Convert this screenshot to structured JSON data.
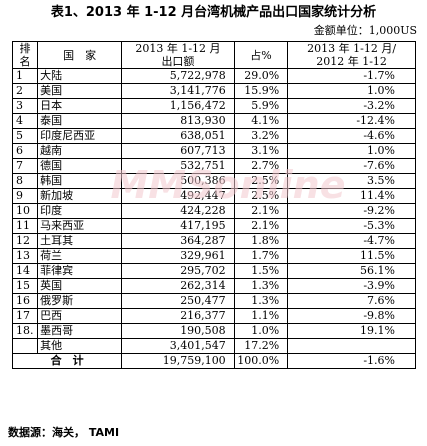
{
  "title": "表1、2013 年 1-12 月台湾机械产品出口国家统计分析",
  "unit": "金额单位：1,000US",
  "headers": {
    "rank_line1": "排",
    "rank_line2": "名",
    "country": "国　家",
    "amount_line1": "2013 年 1-12 月",
    "amount_line2": "出口额",
    "pct": "占%",
    "change_line1": "2013 年 1-12 月/",
    "change_line2": "2012 年 1-12"
  },
  "rows": [
    {
      "rank": "1",
      "country": "大陆",
      "amount": "5,722,978",
      "pct": "29.0%",
      "change": "-1.7%"
    },
    {
      "rank": "2",
      "country": "美国",
      "amount": "3,141,776",
      "pct": "15.9%",
      "change": "1.0%"
    },
    {
      "rank": "3",
      "country": "日本",
      "amount": "1,156,472",
      "pct": "5.9%",
      "change": "-3.2%"
    },
    {
      "rank": "4",
      "country": "泰国",
      "amount": "813,930",
      "pct": "4.1%",
      "change": "-12.4%"
    },
    {
      "rank": "5",
      "country": "印度尼西亚",
      "amount": "638,051",
      "pct": "3.2%",
      "change": "-4.6%"
    },
    {
      "rank": "6",
      "country": "越南",
      "amount": "607,713",
      "pct": "3.1%",
      "change": "1.0%"
    },
    {
      "rank": "7",
      "country": "德国",
      "amount": "532,751",
      "pct": "2.7%",
      "change": "-7.6%"
    },
    {
      "rank": "8",
      "country": "韩国",
      "amount": "500,386",
      "pct": "2.5%",
      "change": "3.5%"
    },
    {
      "rank": "9",
      "country": "新加坡",
      "amount": "492,447",
      "pct": "2.5%",
      "change": "11.4%"
    },
    {
      "rank": "10",
      "country": "印度",
      "amount": "424,228",
      "pct": "2.1%",
      "change": "-9.2%"
    },
    {
      "rank": "11",
      "country": "马来西亚",
      "amount": "417,195",
      "pct": "2.1%",
      "change": "-5.3%"
    },
    {
      "rank": "12",
      "country": "土耳其",
      "amount": "364,287",
      "pct": "1.8%",
      "change": "-4.7%"
    },
    {
      "rank": "13",
      "country": "荷兰",
      "amount": "329,961",
      "pct": "1.7%",
      "change": "11.5%"
    },
    {
      "rank": "14",
      "country": "菲律宾",
      "amount": "295,702",
      "pct": "1.5%",
      "change": "56.1%"
    },
    {
      "rank": "15",
      "country": "英国",
      "amount": "262,314",
      "pct": "1.3%",
      "change": "-3.9%"
    },
    {
      "rank": "16",
      "country": "俄罗斯",
      "amount": "250,477",
      "pct": "1.3%",
      "change": "7.6%"
    },
    {
      "rank": "17",
      "country": "巴西",
      "amount": "216,377",
      "pct": "1.1%",
      "change": "-9.8%"
    },
    {
      "rank": "18.",
      "country": "墨西哥",
      "amount": "190,508",
      "pct": "1.0%",
      "change": "19.1%"
    },
    {
      "rank": "",
      "country": "其他",
      "amount": "3,401,547",
      "pct": "17.2%",
      "change": ""
    }
  ],
  "total": {
    "label": "合　计",
    "amount": "19,759,100",
    "pct": "100.0%",
    "change": "-1.6%"
  },
  "source": "数据源：海关， TAMI",
  "watermark": {
    "text": "MMSonline",
    "color": "#f3c9cf"
  }
}
